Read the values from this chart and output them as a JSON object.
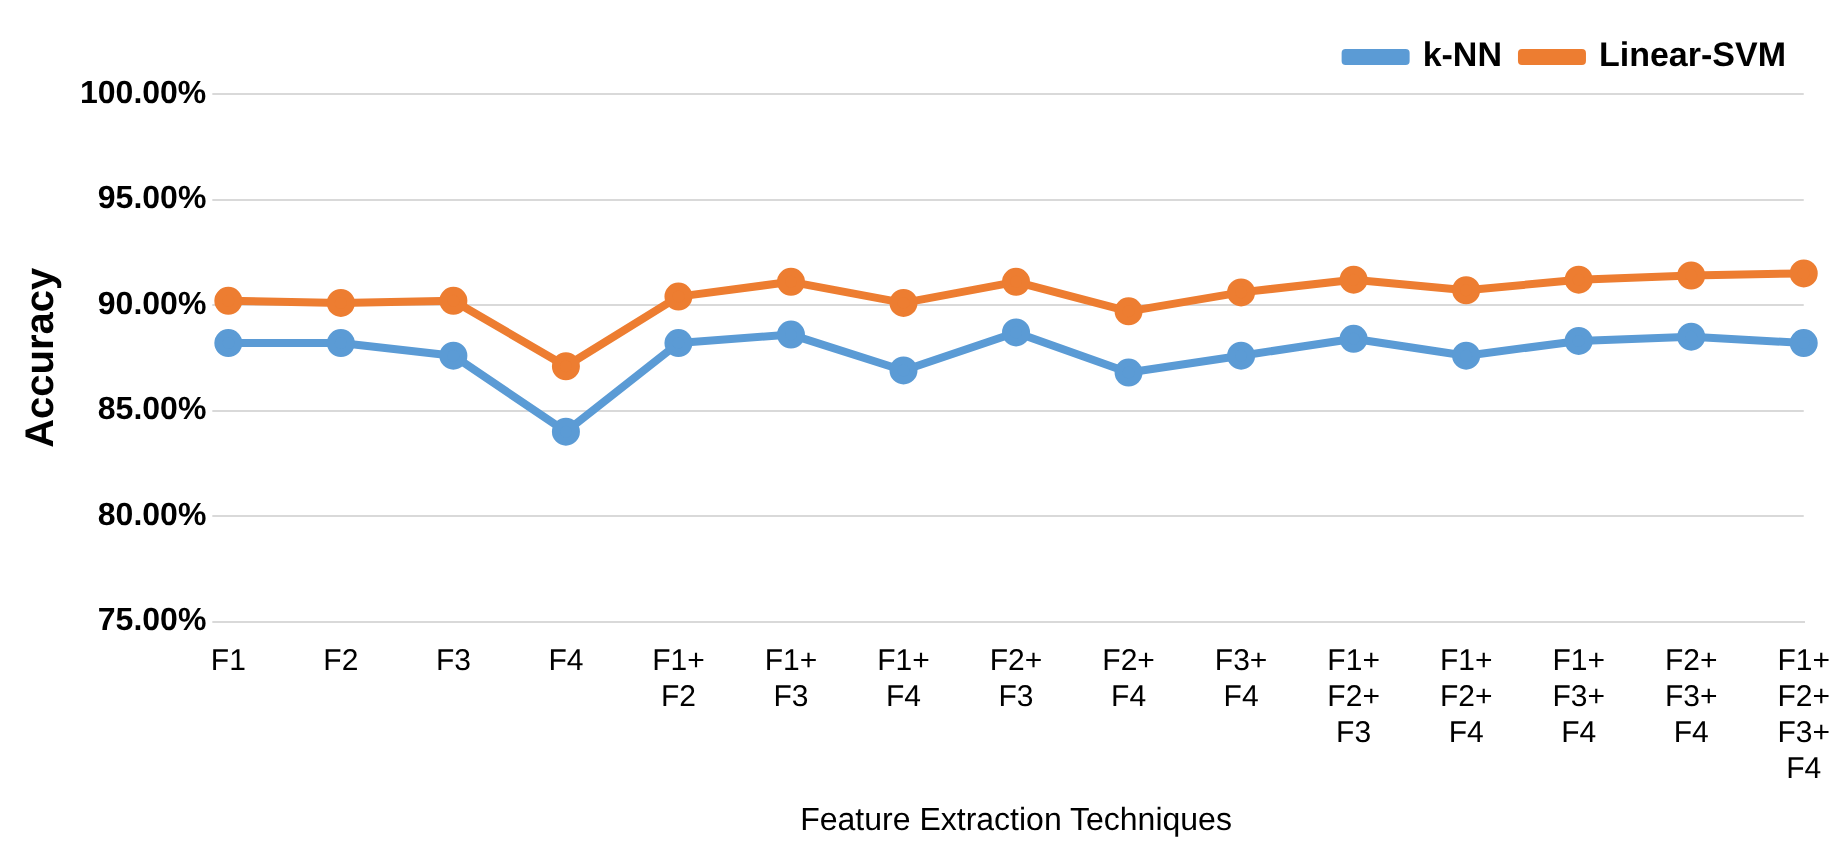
{
  "chart_data": {
    "type": "line",
    "xlabel": "Feature Extraction Techniques",
    "ylabel": "Accuracy",
    "categories": [
      "F1",
      "F2",
      "F3",
      "F4",
      "F1+\nF2",
      "F1+\nF3",
      "F1+\nF4",
      "F2+\nF3",
      "F2+\nF4",
      "F3+\nF4",
      "F1+\nF2+\nF3",
      "F1+\nF2+\nF4",
      "F1+\nF3+\nF4",
      "F2+\nF3+\nF4",
      "F1+\nF2+\nF3+\nF4"
    ],
    "series": [
      {
        "name": "k-NN",
        "color": "#5b9bd5",
        "values": [
          88.2,
          88.2,
          87.6,
          84.0,
          88.2,
          88.6,
          86.9,
          88.7,
          86.8,
          87.6,
          88.4,
          87.6,
          88.3,
          88.5,
          88.2
        ]
      },
      {
        "name": "Linear-SVM",
        "color": "#ed7d31",
        "values": [
          90.2,
          90.1,
          90.2,
          87.1,
          90.4,
          91.1,
          90.1,
          91.1,
          89.7,
          90.6,
          91.2,
          90.7,
          91.2,
          91.4,
          91.5
        ]
      }
    ],
    "ylim": [
      75,
      100
    ],
    "yticks": [
      {
        "value": 75,
        "label": "75.00%"
      },
      {
        "value": 80,
        "label": "80.00%"
      },
      {
        "value": 85,
        "label": "85.00%"
      },
      {
        "value": 90,
        "label": "90.00%"
      },
      {
        "value": 95,
        "label": "95.00%"
      },
      {
        "value": 100,
        "label": "100.00%"
      }
    ],
    "grid": "y",
    "legend": "top right",
    "marker": "circle",
    "line_style": "solid"
  }
}
